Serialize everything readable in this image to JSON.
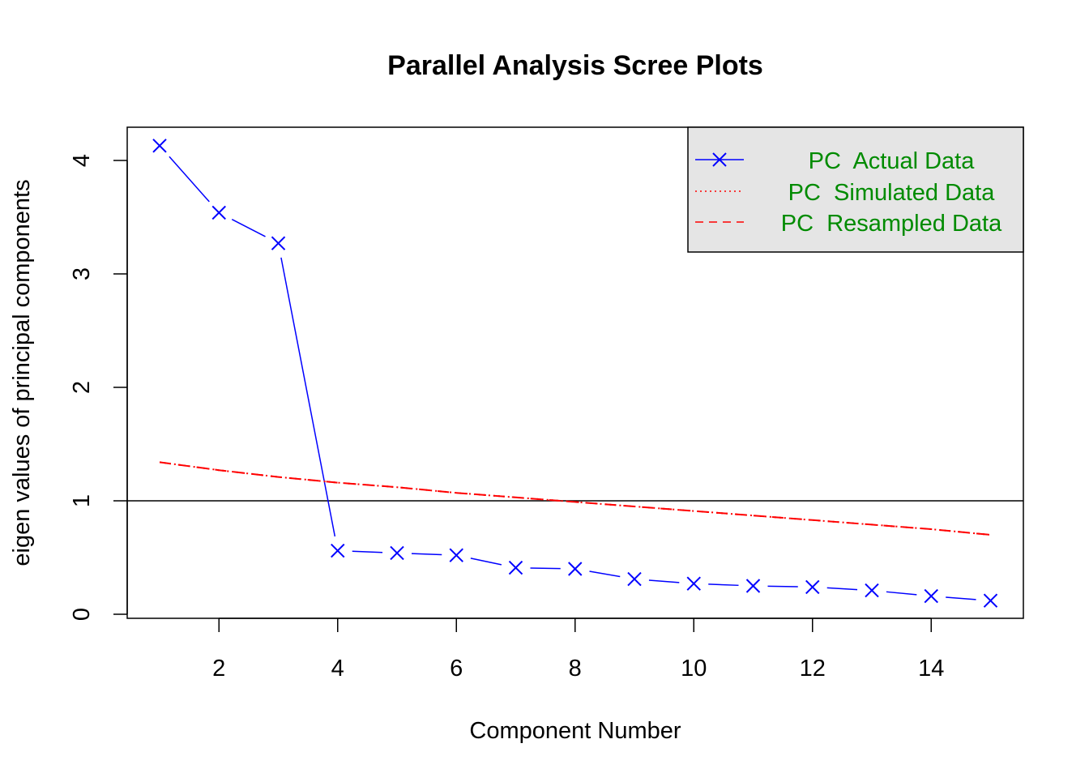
{
  "chart_data": {
    "type": "line",
    "title": "Parallel Analysis Scree Plots",
    "xlabel": "Component Number",
    "ylabel": "eigen values of principal components",
    "xlim": [
      0.44,
      15.56
    ],
    "ylim": [
      -0.04,
      4.29
    ],
    "x_ticks": [
      2,
      4,
      6,
      8,
      10,
      12,
      14
    ],
    "y_ticks": [
      0,
      1,
      2,
      3,
      4
    ],
    "reference_line_y": 1,
    "x": [
      1,
      2,
      3,
      4,
      5,
      6,
      7,
      8,
      9,
      10,
      11,
      12,
      13,
      14,
      15
    ],
    "series": [
      {
        "name": "PC  Actual Data",
        "color": "#0000FF",
        "style": "solid-x",
        "values": [
          4.13,
          3.54,
          3.27,
          0.56,
          0.54,
          0.52,
          0.41,
          0.4,
          0.31,
          0.27,
          0.25,
          0.24,
          0.21,
          0.16,
          0.12
        ]
      },
      {
        "name": "PC  Simulated Data",
        "color": "#FF0000",
        "style": "dotted",
        "values": [
          1.34,
          1.27,
          1.21,
          1.16,
          1.12,
          1.07,
          1.03,
          0.99,
          0.95,
          0.91,
          0.87,
          0.83,
          0.79,
          0.75,
          0.7
        ]
      },
      {
        "name": "PC  Resampled Data",
        "color": "#FF0000",
        "style": "dashed",
        "values": [
          1.34,
          1.27,
          1.21,
          1.16,
          1.12,
          1.07,
          1.03,
          0.99,
          0.95,
          0.91,
          0.87,
          0.83,
          0.79,
          0.75,
          0.7
        ]
      }
    ],
    "legend": {
      "placement": "top-right",
      "background": "#E5E5E5",
      "text_color": "#008B00"
    }
  }
}
